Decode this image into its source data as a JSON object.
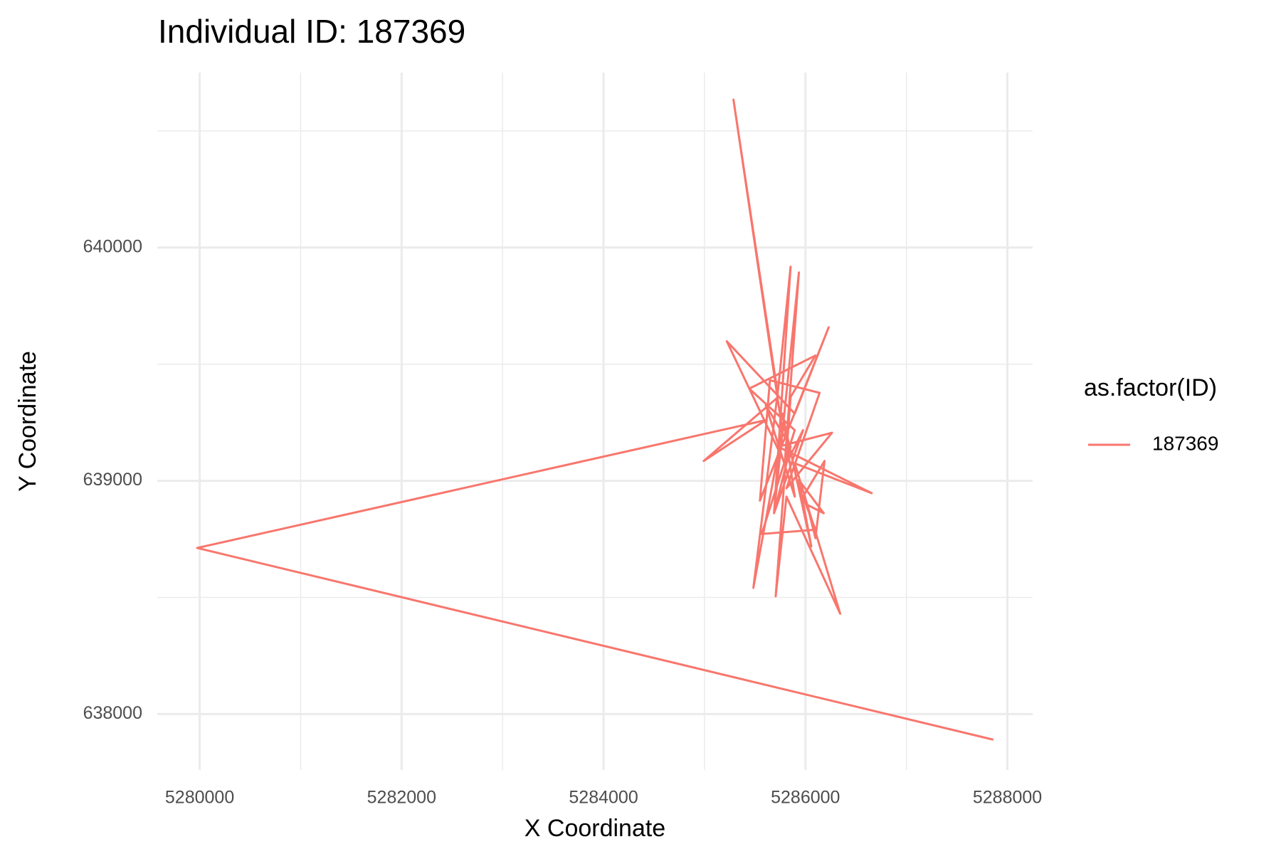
{
  "chart_data": {
    "type": "path",
    "title": "Individual ID: 187369",
    "xlabel": "X Coordinate",
    "ylabel": "Y Coordinate",
    "legend_title": "as.factor(ID)",
    "legend": "right",
    "grid": true,
    "x": [
      5287861,
      5279975,
      5285607,
      5284992,
      5285730,
      5285287,
      5285771,
      5285484,
      5285730,
      5285853,
      5285689,
      5285935,
      5285795,
      5285221,
      5285894,
      5286230,
      5285549,
      5285648,
      5286140,
      5285812,
      5286263,
      5285730,
      5286656,
      5285894,
      5286344,
      5285812,
      5285705,
      5285853,
      5286099,
      5285443,
      5285894,
      5285566,
      5286099,
      5285976,
      5286189,
      5286099,
      5286017,
      5286181,
      5285935,
      5286058,
      5285771,
      5285894,
      5285607,
      5285853,
      5285689,
      5285976,
      5285812
    ],
    "series": [
      {
        "name": "187369",
        "color": "#F8766D",
        "values": [
          637890,
          638712,
          639260,
          639085,
          639359,
          640634,
          639217,
          638541,
          639395,
          639918,
          638861,
          639893,
          639075,
          639598,
          639288,
          639658,
          638915,
          639431,
          639377,
          638968,
          639206,
          639146,
          638947,
          639075,
          638430,
          638932,
          638505,
          639359,
          639537,
          639395,
          639217,
          638772,
          638790,
          638932,
          639085,
          638754,
          638897,
          638861,
          639003,
          638719,
          639288,
          638932,
          639324,
          639146,
          638861,
          639217,
          639075
        ]
      }
    ],
    "xlim": [
      5279580,
      5288250
    ],
    "ylim": [
      637760,
      640750
    ],
    "xticks": [
      5280000,
      5282000,
      5284000,
      5286000,
      5288000
    ],
    "yticks": [
      638000,
      639000,
      640000
    ],
    "x_minor_breaks": [
      5281000,
      5283000,
      5285000,
      5287000
    ],
    "y_minor_breaks": [
      638500,
      639500,
      640500
    ]
  }
}
